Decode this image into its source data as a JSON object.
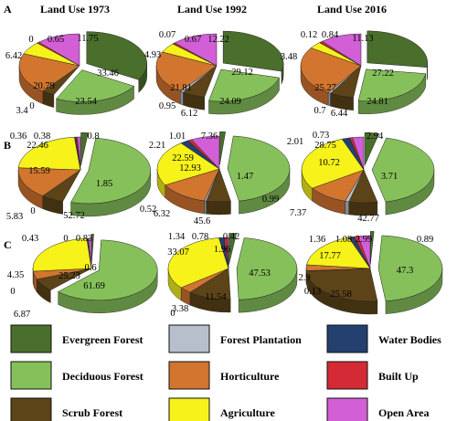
{
  "colors": {
    "Evergreen Forest": "#4a6e2c",
    "Forest Plantation": "#b8bfcc",
    "Water Bodies": "#23406e",
    "Deciduous Forest": "#86c05a",
    "Horticulture": "#d2752f",
    "Built Up": "#d42a36",
    "Scrub Forest": "#5c4418",
    "Agriculture": "#f6f21a",
    "Open Area": "#d25fd6"
  },
  "column_titles": [
    "Land Use 1973",
    "Land Use 1992",
    "Land Use 2016"
  ],
  "row_labels": [
    "A",
    "B",
    "C"
  ],
  "legend": [
    "Evergreen Forest",
    "Forest Plantation",
    "Water Bodies",
    "Deciduous Forest",
    "Horticulture",
    "Built Up",
    "Scrub Forest",
    "Agriculture",
    "Open Area"
  ],
  "chart_data": [
    {
      "type": "pie",
      "row": "A",
      "title": "Land Use 1973",
      "categories": [
        "Evergreen Forest",
        "Deciduous Forest",
        "Scrub Forest",
        "Forest Plantation",
        "Horticulture",
        "Agriculture",
        "Water Bodies",
        "Built Up",
        "Open Area"
      ],
      "values": [
        33.46,
        23.54,
        3.4,
        0,
        20.79,
        6.42,
        0,
        0.65,
        11.75
      ]
    },
    {
      "type": "pie",
      "row": "A",
      "title": "Land Use 1992",
      "categories": [
        "Evergreen Forest",
        "Deciduous Forest",
        "Scrub Forest",
        "Forest Plantation",
        "Horticulture",
        "Agriculture",
        "Water Bodies",
        "Built Up",
        "Open Area"
      ],
      "values": [
        29.12,
        24.09,
        6.12,
        0.95,
        21.81,
        4.93,
        0.07,
        0.67,
        12.22
      ]
    },
    {
      "type": "pie",
      "row": "A",
      "title": "Land Use 2016",
      "categories": [
        "Evergreen Forest",
        "Deciduous Forest",
        "Scrub Forest",
        "Forest Plantation",
        "Horticulture",
        "Agriculture",
        "Water Bodies",
        "Built Up",
        "Open Area"
      ],
      "values": [
        27.22,
        24.81,
        6.44,
        0.7,
        25.27,
        3.48,
        0.12,
        0.84,
        11.13
      ]
    },
    {
      "type": "pie",
      "row": "B",
      "title": "",
      "categories": [
        "Evergreen Forest",
        "Deciduous Forest",
        "Scrub Forest",
        "Forest Plantation",
        "Horticulture",
        "Agriculture",
        "Water Bodies",
        "Built Up",
        "Open Area"
      ],
      "values": [
        1.85,
        52.72,
        5.83,
        0,
        15.59,
        22.46,
        0.36,
        0.38,
        0.8
      ]
    },
    {
      "type": "pie",
      "row": "B",
      "title": "",
      "categories": [
        "Evergreen Forest",
        "Deciduous Forest",
        "Scrub Forest",
        "Forest Plantation",
        "Horticulture",
        "Agriculture",
        "Water Bodies",
        "Built Up",
        "Open Area"
      ],
      "values": [
        1.47,
        45.6,
        6.32,
        0.52,
        12.93,
        22.59,
        2.21,
        1.01,
        7.36
      ]
    },
    {
      "type": "pie",
      "row": "B",
      "title": "",
      "categories": [
        "Evergreen Forest",
        "Deciduous Forest",
        "Scrub Forest",
        "Forest Plantation",
        "Horticulture",
        "Agriculture",
        "Water Bodies",
        "Built Up",
        "Open Area"
      ],
      "values": [
        3.71,
        42.77,
        7.37,
        0.99,
        10.72,
        28.75,
        2.01,
        0.73,
        2.94
      ]
    },
    {
      "type": "pie",
      "row": "C",
      "title": "",
      "categories": [
        "Evergreen Forest",
        "Deciduous Forest",
        "Scrub Forest",
        "Forest Plantation",
        "Horticulture",
        "Agriculture",
        "Water Bodies",
        "Built Up",
        "Open Area"
      ],
      "values": [
        0.6,
        61.69,
        6.87,
        0,
        4.35,
        25.23,
        0.43,
        0,
        0.83
      ]
    },
    {
      "type": "pie",
      "row": "C",
      "title": "",
      "categories": [
        "Evergreen Forest",
        "Deciduous Forest",
        "Scrub Forest",
        "Forest Plantation",
        "Horticulture",
        "Agriculture",
        "Water Bodies",
        "Built Up",
        "Open Area"
      ],
      "values": [
        1.96,
        47.53,
        11.54,
        0,
        3.38,
        33.07,
        1.34,
        0.78,
        0.42
      ]
    },
    {
      "type": "pie",
      "row": "C",
      "title": "",
      "categories": [
        "Evergreen Forest",
        "Deciduous Forest",
        "Scrub Forest",
        "Forest Plantation",
        "Horticulture",
        "Agriculture",
        "Water Bodies",
        "Built Up",
        "Open Area"
      ],
      "values": [
        0.89,
        47.3,
        25.58,
        0.13,
        2.9,
        17.77,
        1.36,
        1.08,
        2.99
      ]
    }
  ]
}
